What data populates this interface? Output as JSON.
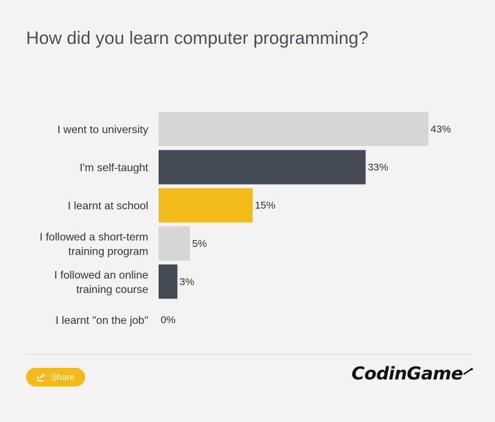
{
  "title": "How did you learn computer programming?",
  "share_label": "Share",
  "logo_text": "CodinGame",
  "colors": {
    "background": "#f3f3f3",
    "light_gray": "#d6d6d6",
    "dark": "#454b55",
    "yellow": "#f2bb19",
    "text": "#333333",
    "title": "#4a4e57"
  },
  "icons": {
    "share": "share-icon"
  },
  "chart_data": {
    "type": "bar",
    "orientation": "horizontal",
    "title": "How did you learn computer programming?",
    "categories": [
      [
        "I went to university"
      ],
      [
        "I'm self-taught"
      ],
      [
        "I learnt at school"
      ],
      [
        "I followed a short-term",
        "training program"
      ],
      [
        "I followed an online",
        "training course"
      ],
      [
        "I learnt \"on the job\""
      ]
    ],
    "values": [
      43,
      33,
      15,
      5,
      3,
      0
    ],
    "value_labels": [
      "43%",
      "33%",
      "15%",
      "5%",
      "3%",
      "0%"
    ],
    "bar_colors": [
      "#d6d6d6",
      "#454b55",
      "#f2bb19",
      "#d6d6d6",
      "#454b55",
      "#f2bb19"
    ],
    "xlim": [
      0,
      43
    ],
    "grid": false,
    "legend": "none"
  }
}
